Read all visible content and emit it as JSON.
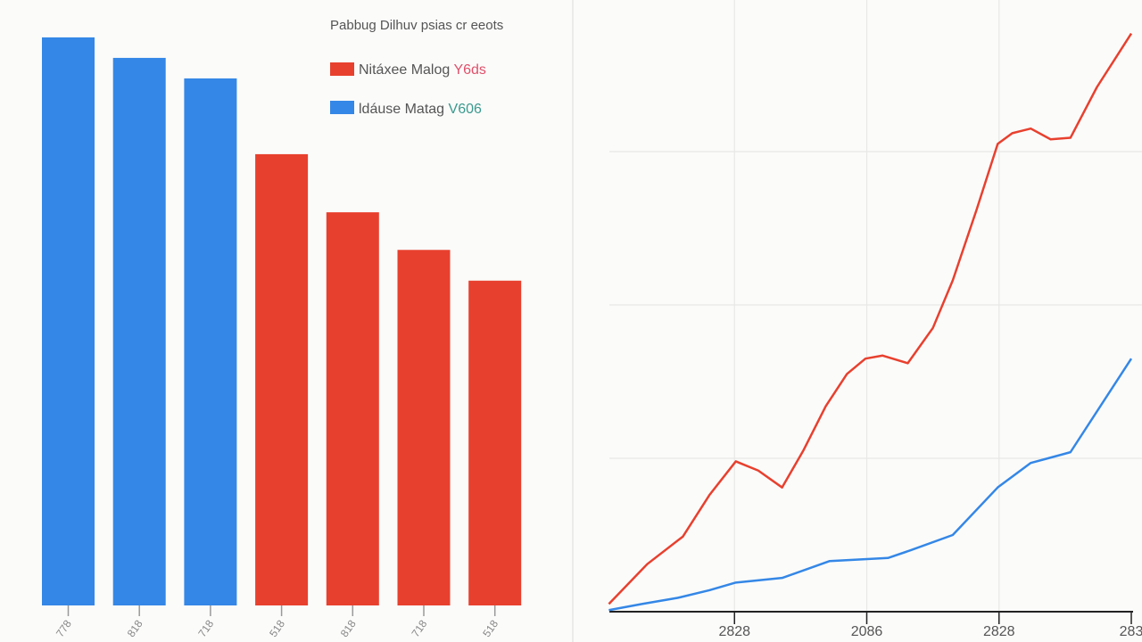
{
  "chart_data": [
    {
      "type": "bar",
      "title": "Pabbug Dilhuv psias cr eeots",
      "legend": {
        "placement": "top-right",
        "entries": [
          {
            "label": "Nitáxee Malog",
            "suffix": "Y6ds",
            "color": "#e8402e",
            "suffix_color": "#e0506a"
          },
          {
            "label": "ldáuse Matag",
            "suffix": "V606",
            "color": "#3487e6",
            "suffix_color": "#3a9a8e"
          }
        ]
      },
      "categories": [
        "778",
        "818",
        "718",
        "518",
        "818",
        "718",
        "518"
      ],
      "values": [
        99.7,
        96.1,
        92.5,
        79.2,
        69.0,
        62.4,
        57.0
      ],
      "bar_colors": [
        "#3487e6",
        "#3487e6",
        "#3487e6",
        "#e8402e",
        "#e8402e",
        "#e8402e",
        "#e8402e"
      ],
      "ylim": [
        0,
        100
      ],
      "grid": false
    },
    {
      "type": "line",
      "xlim": [
        0,
        4
      ],
      "ylim": [
        0,
        4
      ],
      "xticks": [
        1,
        2,
        3,
        4
      ],
      "xtick_labels": [
        "2828",
        "2086",
        "2828",
        "283"
      ],
      "grid": true,
      "series": [
        {
          "color": "#e8402e",
          "x": [
            0.05,
            0.34,
            0.61,
            0.81,
            1.01,
            1.18,
            1.36,
            1.52,
            1.69,
            1.85,
            1.99,
            2.12,
            2.31,
            2.5,
            2.65,
            2.83,
            2.99,
            3.1,
            3.24,
            3.39,
            3.54,
            3.74,
            4.0
          ],
          "y": [
            0.05,
            0.31,
            0.49,
            0.76,
            0.98,
            0.92,
            0.81,
            1.05,
            1.34,
            1.55,
            1.65,
            1.67,
            1.62,
            1.85,
            2.16,
            2.62,
            3.05,
            3.12,
            3.15,
            3.08,
            3.09,
            3.42,
            3.77
          ]
        },
        {
          "color": "#3487e6",
          "x": [
            0.05,
            0.3,
            0.57,
            0.81,
            1.01,
            1.36,
            1.72,
            2.16,
            2.33,
            2.65,
            2.99,
            3.24,
            3.37,
            3.54,
            4.0
          ],
          "y": [
            0.01,
            0.05,
            0.09,
            0.14,
            0.19,
            0.22,
            0.33,
            0.35,
            0.4,
            0.5,
            0.81,
            0.97,
            1.0,
            1.04,
            1.65
          ]
        }
      ]
    }
  ]
}
